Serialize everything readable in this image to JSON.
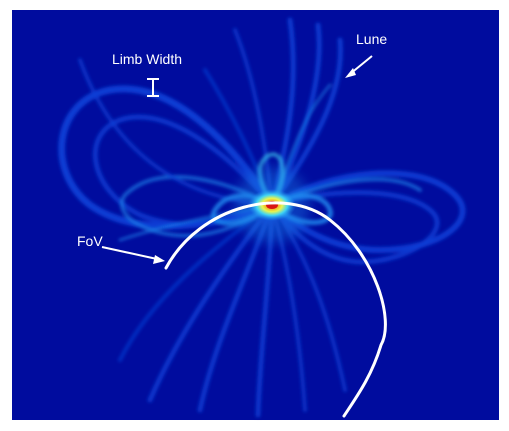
{
  "figure": {
    "background_color": "#000C9E",
    "heat_colors": [
      "#0A3FD6",
      "#1E8BF0",
      "#3FD3F5",
      "#E8F550",
      "#F2A51C",
      "#D81414"
    ],
    "annotation_color": "#FFFFFF"
  },
  "annotations": {
    "limb_width_label": "Limb Width",
    "lune_label": "Lune",
    "fov_label": "FoV"
  }
}
